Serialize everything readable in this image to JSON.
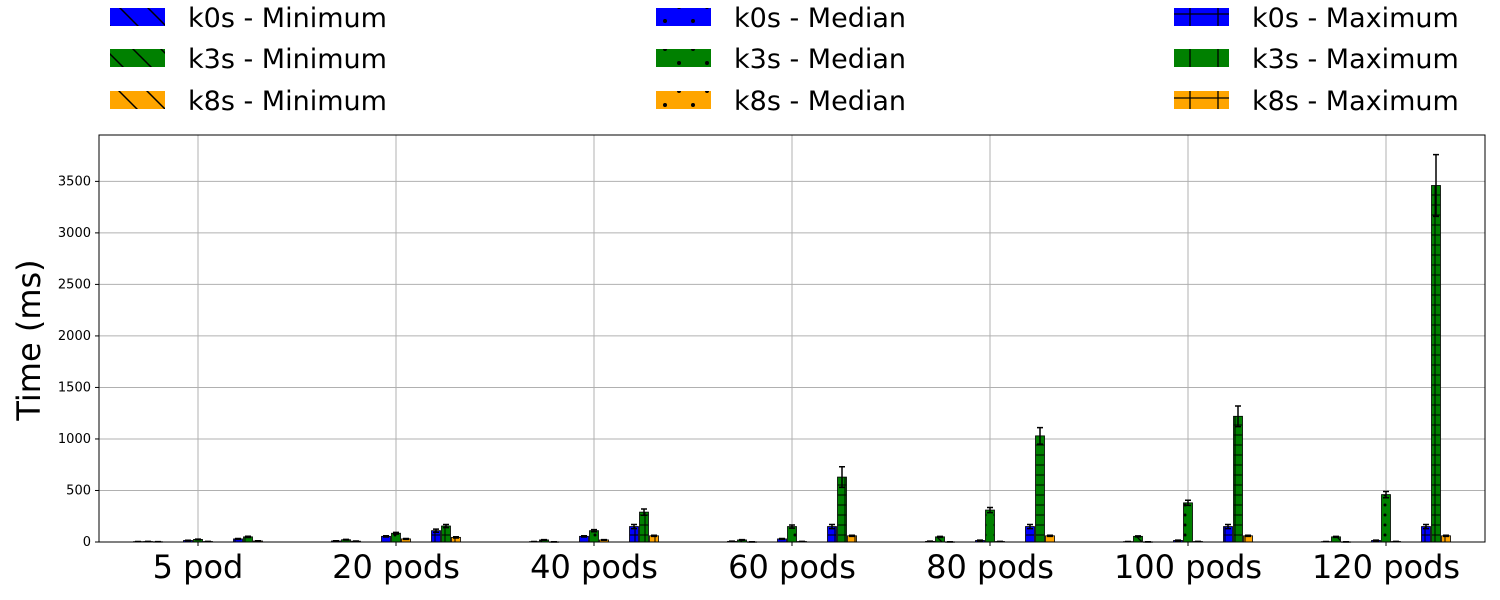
{
  "chart_data": {
    "type": "bar",
    "title": "",
    "ylabel": "Time (ms)",
    "xlabel": "",
    "ylim": [
      0,
      3950
    ],
    "yticks": [
      0,
      500,
      1000,
      1500,
      2000,
      2500,
      3000,
      3500
    ],
    "grid": true,
    "legend_position": "top",
    "categories": [
      "5 pod",
      "20 pods",
      "40 pods",
      "60 pods",
      "80 pods",
      "100 pods",
      "120 pods"
    ],
    "stats": [
      "Minimum",
      "Median",
      "Maximum"
    ],
    "distributions": [
      "k0s",
      "k3s",
      "k8s"
    ],
    "colors": {
      "k0s": "#0000ff",
      "k3s": "#008000",
      "k8s": "#ffa500"
    },
    "hatches": {
      "Minimum": "diagonal",
      "Median": "dots",
      "Maximum": "grid"
    },
    "series": [
      {
        "name": "k0s - Minimum",
        "dist": "k0s",
        "stat": "Minimum",
        "values": [
          4,
          10,
          4,
          6,
          6,
          4,
          4
        ],
        "errors": [
          1,
          2,
          1,
          2,
          2,
          1,
          1
        ]
      },
      {
        "name": "k3s - Minimum",
        "dist": "k3s",
        "stat": "Minimum",
        "values": [
          5,
          22,
          20,
          20,
          50,
          55,
          50
        ],
        "errors": [
          1,
          3,
          3,
          3,
          5,
          5,
          5
        ]
      },
      {
        "name": "k8s - Minimum",
        "dist": "k8s",
        "stat": "Minimum",
        "values": [
          3,
          8,
          2,
          2,
          2,
          2,
          2
        ],
        "errors": [
          1,
          2,
          1,
          1,
          1,
          1,
          1
        ]
      },
      {
        "name": "k0s - Median",
        "dist": "k0s",
        "stat": "Median",
        "values": [
          15,
          55,
          55,
          30,
          15,
          15,
          15
        ],
        "errors": [
          2,
          6,
          6,
          4,
          3,
          3,
          3
        ]
      },
      {
        "name": "k3s - Median",
        "dist": "k3s",
        "stat": "Median",
        "values": [
          25,
          85,
          110,
          150,
          310,
          380,
          460
        ],
        "errors": [
          3,
          8,
          10,
          15,
          25,
          25,
          30
        ]
      },
      {
        "name": "k8s - Median",
        "dist": "k8s",
        "stat": "Median",
        "values": [
          5,
          30,
          20,
          5,
          5,
          5,
          5
        ],
        "errors": [
          1,
          4,
          3,
          1,
          1,
          1,
          1
        ]
      },
      {
        "name": "k0s - Maximum",
        "dist": "k0s",
        "stat": "Maximum",
        "values": [
          30,
          110,
          150,
          150,
          150,
          150,
          150
        ],
        "errors": [
          4,
          15,
          20,
          20,
          20,
          20,
          20
        ]
      },
      {
        "name": "k3s - Maximum",
        "dist": "k3s",
        "stat": "Maximum",
        "values": [
          50,
          155,
          290,
          630,
          1030,
          1220,
          3460
        ],
        "errors": [
          6,
          15,
          30,
          100,
          80,
          100,
          300
        ]
      },
      {
        "name": "k8s - Maximum",
        "dist": "k8s",
        "stat": "Maximum",
        "values": [
          10,
          45,
          60,
          60,
          60,
          60,
          60
        ],
        "errors": [
          2,
          6,
          6,
          6,
          6,
          6,
          6
        ]
      }
    ]
  }
}
